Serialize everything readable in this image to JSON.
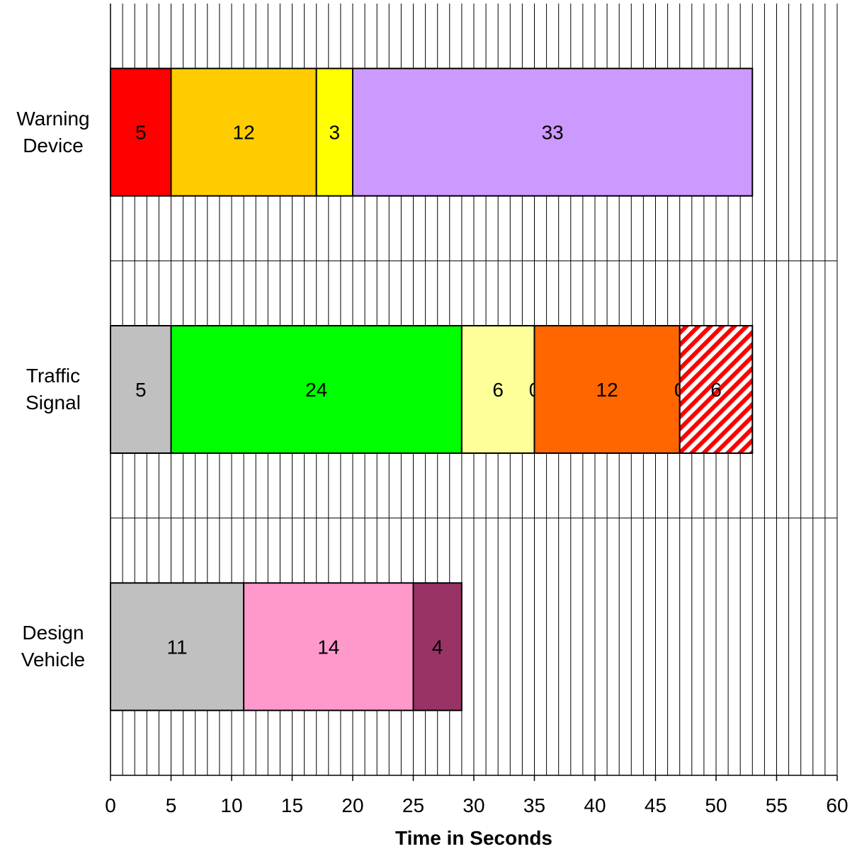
{
  "chart_data": {
    "type": "bar",
    "orientation": "horizontal",
    "stacked": true,
    "title": "",
    "xlabel": "Time in Seconds",
    "ylabel": "",
    "xlim": [
      0,
      60
    ],
    "x_ticks": [
      0,
      5,
      10,
      15,
      20,
      25,
      30,
      35,
      40,
      45,
      50,
      55,
      60
    ],
    "minor_grid_step": 1,
    "grid": true,
    "legend": "none",
    "categories": [
      "Warning Device",
      "Traffic Signal",
      "Design Vehicle"
    ],
    "category_label_lines": [
      [
        "Warning",
        "Device"
      ],
      [
        "Traffic",
        "Signal"
      ],
      [
        "Design",
        "Vehicle"
      ]
    ],
    "rows": [
      {
        "category": "Warning Device",
        "segments": [
          {
            "value": 5,
            "color": "#ff0000"
          },
          {
            "value": 12,
            "color": "#ffcc00"
          },
          {
            "value": 3,
            "color": "#ffff00"
          },
          {
            "value": 33,
            "color": "#cc99ff"
          }
        ]
      },
      {
        "category": "Traffic Signal",
        "segments": [
          {
            "value": 5,
            "color": "#c0c0c0"
          },
          {
            "value": 24,
            "color": "#00ff00"
          },
          {
            "value": 6,
            "color": "#ffff99"
          },
          {
            "value": 0,
            "color": "#ffffff"
          },
          {
            "value": 12,
            "color": "#ff6600"
          },
          {
            "value": 0,
            "color": "#ffffff"
          },
          {
            "value": 6,
            "color": "#ff0000",
            "pattern": "diagonal-stripes"
          }
        ]
      },
      {
        "category": "Design Vehicle",
        "segments": [
          {
            "value": 11,
            "color": "#c0c0c0"
          },
          {
            "value": 14,
            "color": "#ff99cc"
          },
          {
            "value": 4,
            "color": "#993366"
          }
        ]
      }
    ]
  }
}
